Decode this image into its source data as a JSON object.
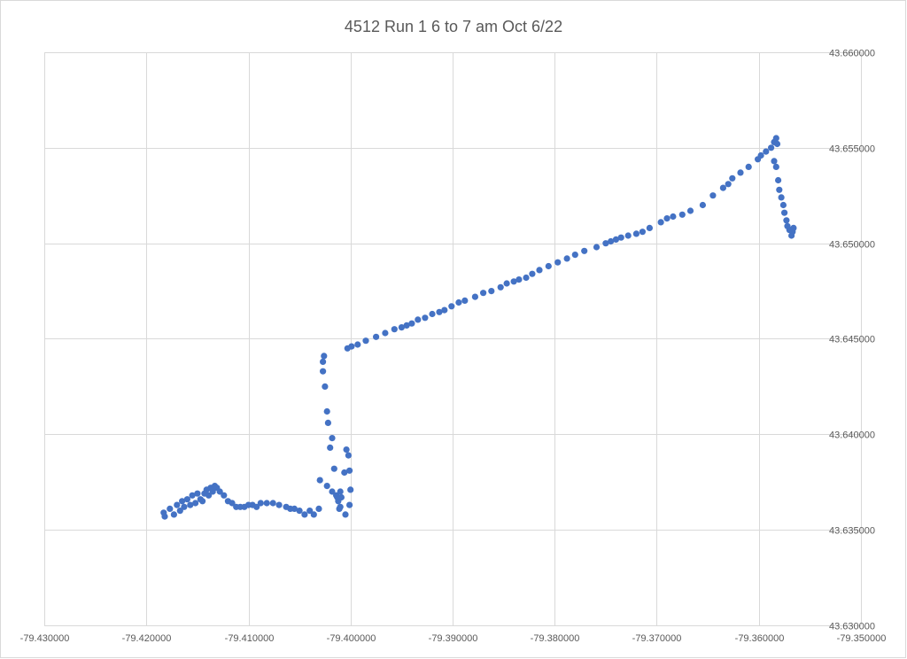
{
  "chart_data": {
    "type": "scatter",
    "title": "4512 Run 1 6 to 7 am Oct 6/22",
    "xlabel": "",
    "ylabel": "",
    "xlim": [
      -79.43,
      -79.35
    ],
    "ylim": [
      43.63,
      43.66
    ],
    "x_ticks": [
      -79.43,
      -79.42,
      -79.41,
      -79.4,
      -79.39,
      -79.38,
      -79.37,
      -79.36,
      -79.35
    ],
    "y_ticks": [
      43.63,
      43.635,
      43.64,
      43.645,
      43.65,
      43.655,
      43.66
    ],
    "x_tick_labels": [
      "-79.430000",
      "-79.420000",
      "-79.410000",
      "-79.400000",
      "-79.390000",
      "-79.380000",
      "-79.370000",
      "-79.360000",
      "-79.350000"
    ],
    "y_tick_labels": [
      "43.630000",
      "43.635000",
      "43.640000",
      "43.645000",
      "43.650000",
      "43.655000",
      "43.660000"
    ],
    "y_axis_position": "right",
    "grid": true,
    "legend": "none",
    "marker_color": "#4472c4",
    "series": [
      {
        "x": [
          -79.4183,
          -79.4182,
          -79.4177,
          -79.4173,
          -79.417,
          -79.4167,
          -79.4165,
          -79.4163,
          -79.416,
          -79.4157,
          -79.4155,
          -79.4152,
          -79.415,
          -79.4147,
          -79.4145,
          -79.4143,
          -79.4141,
          -79.4139,
          -79.4137,
          -79.4135,
          -79.4133,
          -79.4131,
          -79.4128,
          -79.4124,
          -79.412,
          -79.4116,
          -79.4112,
          -79.4108,
          -79.4104,
          -79.41,
          -79.4096,
          -79.4092,
          -79.4088,
          -79.4082,
          -79.4076,
          -79.407,
          -79.4063,
          -79.4059,
          -79.4055,
          -79.405,
          -79.4045,
          -79.404,
          -79.4036,
          -79.4031,
          -79.4027,
          -79.4027,
          -79.4026,
          -79.4025,
          -79.4023,
          -79.4022,
          -79.402,
          -79.4018,
          -79.4016,
          -79.4014,
          -79.4012,
          -79.4011,
          -79.401,
          -79.4009,
          -79.4006,
          -79.4004,
          -79.4002,
          -79.4001,
          -79.4,
          -79.4001,
          -79.4005,
          -79.401,
          -79.4013,
          -79.4018,
          -79.4023,
          -79.403,
          -79.4003,
          -79.3999,
          -79.3993,
          -79.3985,
          -79.3975,
          -79.3966,
          -79.3957,
          -79.395,
          -79.3945,
          -79.394,
          -79.3934,
          -79.3927,
          -79.392,
          -79.3913,
          -79.3908,
          -79.3901,
          -79.3894,
          -79.3888,
          -79.3878,
          -79.387,
          -79.3862,
          -79.3853,
          -79.3847,
          -79.384,
          -79.3835,
          -79.3828,
          -79.3822,
          -79.3815,
          -79.3806,
          -79.3797,
          -79.3788,
          -79.378,
          -79.3771,
          -79.3759,
          -79.375,
          -79.3745,
          -79.374,
          -79.3735,
          -79.3728,
          -79.372,
          -79.3714,
          -79.3707,
          -79.3696,
          -79.369,
          -79.3684,
          -79.3675,
          -79.3667,
          -79.3655,
          -79.3645,
          -79.3635,
          -79.363,
          -79.3626,
          -79.3618,
          -79.361,
          -79.3601,
          -79.3598,
          -79.3593,
          -79.3588,
          -79.3585,
          -79.3583,
          -79.3582,
          -79.3585,
          -79.3583,
          -79.3581,
          -79.358,
          -79.3578,
          -79.3576,
          -79.3575,
          -79.3573,
          -79.3572,
          -79.357,
          -79.3568,
          -79.3567,
          -79.3566
        ],
        "y": [
          43.6359,
          43.6357,
          43.6361,
          43.6358,
          43.6363,
          43.636,
          43.6365,
          43.6362,
          43.6366,
          43.6363,
          43.6368,
          43.6364,
          43.6369,
          43.6366,
          43.6365,
          43.6369,
          43.6371,
          43.6368,
          43.6372,
          43.637,
          43.6373,
          43.6372,
          43.637,
          43.6368,
          43.6365,
          43.6364,
          43.6362,
          43.6362,
          43.6362,
          43.6363,
          43.6363,
          43.6362,
          43.6364,
          43.6364,
          43.6364,
          43.6363,
          43.6362,
          43.6361,
          43.6361,
          43.636,
          43.6358,
          43.636,
          43.6358,
          43.6361,
          43.6438,
          43.6433,
          43.6441,
          43.6425,
          43.6412,
          43.6406,
          43.6393,
          43.6398,
          43.6382,
          43.6368,
          43.6365,
          43.6361,
          43.637,
          43.6367,
          43.638,
          43.6392,
          43.6389,
          43.6381,
          43.6371,
          43.6363,
          43.6358,
          43.6362,
          43.6367,
          43.637,
          43.6373,
          43.6376,
          43.6445,
          43.6446,
          43.6447,
          43.6449,
          43.6451,
          43.6453,
          43.6455,
          43.6456,
          43.6457,
          43.6458,
          43.646,
          43.6461,
          43.6463,
          43.6464,
          43.6465,
          43.6467,
          43.6469,
          43.647,
          43.6472,
          43.6474,
          43.6475,
          43.6477,
          43.6479,
          43.648,
          43.6481,
          43.6482,
          43.6484,
          43.6486,
          43.6488,
          43.649,
          43.6492,
          43.6494,
          43.6496,
          43.6498,
          43.65,
          43.6501,
          43.6502,
          43.6503,
          43.6504,
          43.6505,
          43.6506,
          43.6508,
          43.6511,
          43.6513,
          43.6514,
          43.6515,
          43.6517,
          43.652,
          43.6525,
          43.6529,
          43.6531,
          43.6534,
          43.6537,
          43.654,
          43.6544,
          43.6546,
          43.6548,
          43.655,
          43.6553,
          43.6555,
          43.6552,
          43.6543,
          43.654,
          43.6533,
          43.6528,
          43.6524,
          43.652,
          43.6516,
          43.6512,
          43.6509,
          43.6507,
          43.6504,
          43.6506,
          43.6508
        ]
      }
    ]
  }
}
